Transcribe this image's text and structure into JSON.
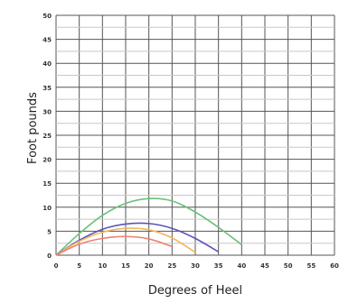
{
  "chart_data": {
    "type": "line",
    "title": "",
    "xlabel": "Degrees of Heel",
    "ylabel": "Foot pounds",
    "xlim": [
      0,
      60
    ],
    "ylim": [
      0,
      50
    ],
    "x_ticks": [
      0,
      5,
      10,
      15,
      20,
      25,
      30,
      35,
      40,
      45,
      50,
      55,
      60
    ],
    "y_ticks": [
      0,
      5,
      10,
      15,
      20,
      25,
      30,
      35,
      40,
      45,
      50
    ],
    "grid": true,
    "legend": "none",
    "series": [
      {
        "color": "#6cc07a",
        "x": [
          0,
          5,
          10,
          15,
          20,
          25,
          30,
          35,
          40
        ],
        "y": [
          0,
          4.5,
          8.3,
          10.8,
          11.8,
          11.3,
          9.0,
          5.8,
          2.2
        ]
      },
      {
        "color": "#5a55b5",
        "x": [
          0,
          5,
          10,
          15,
          20,
          25,
          30,
          35
        ],
        "y": [
          0,
          3.1,
          5.4,
          6.5,
          6.6,
          5.6,
          3.5,
          0.7
        ]
      },
      {
        "color": "#f5b65d",
        "x": [
          0,
          5,
          10,
          15,
          20,
          25,
          30
        ],
        "y": [
          0,
          2.9,
          4.8,
          5.6,
          5.3,
          3.6,
          0.6
        ]
      },
      {
        "color": "#f08070",
        "x": [
          0,
          5,
          10,
          15,
          20,
          25
        ],
        "y": [
          0,
          2.3,
          3.5,
          3.9,
          3.4,
          1.8
        ]
      }
    ]
  }
}
